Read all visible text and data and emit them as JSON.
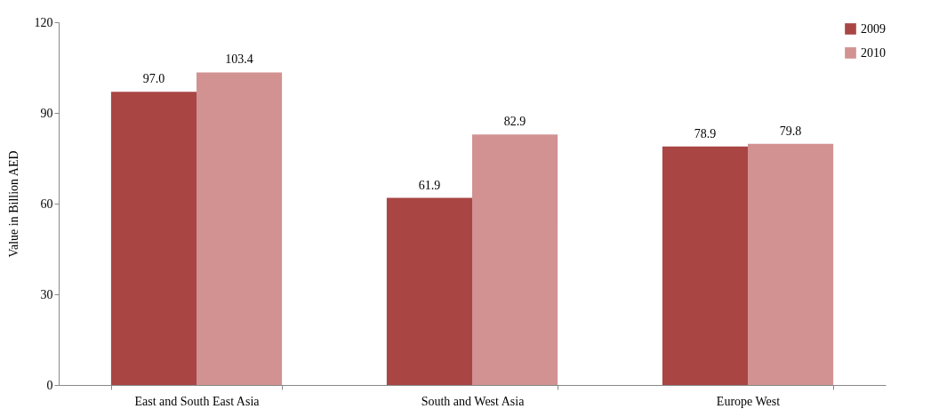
{
  "chart_data": {
    "type": "bar",
    "ylabel": "Value in Billion AED",
    "categories": [
      "East and South East Asia",
      "South and West Asia",
      "Europe West"
    ],
    "series": [
      {
        "name": "2009",
        "color": "#a94644",
        "values": [
          97.0,
          61.9,
          78.9
        ],
        "value_labels": [
          "97.0",
          "61.9",
          "78.9"
        ]
      },
      {
        "name": "2010",
        "color": "#d29292",
        "values": [
          103.4,
          82.9,
          79.8
        ],
        "value_labels": [
          "103.4",
          "82.9",
          "79.8"
        ]
      }
    ],
    "ylim": [
      0,
      120
    ],
    "yticks": [
      0,
      30,
      60,
      90,
      120
    ],
    "grid": false,
    "legend": "top right"
  }
}
